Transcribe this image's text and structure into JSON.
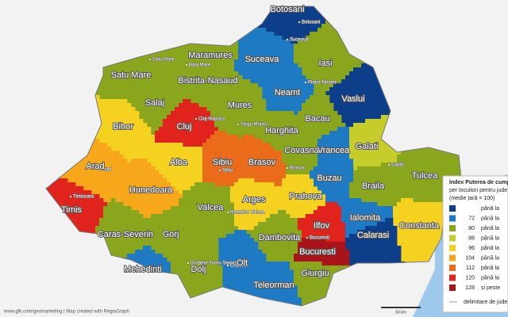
{
  "map": {
    "counties": [
      {
        "name": "Botosani",
        "color": "#0d3e8a"
      },
      {
        "name": "Maramures",
        "color": "#8aa61c"
      },
      {
        "name": "Satu Mare",
        "color": "#8aa61c"
      },
      {
        "name": "Suceava",
        "color": "#1f7ac4"
      },
      {
        "name": "Iasi",
        "color": "#8aa61c"
      },
      {
        "name": "Neamt",
        "color": "#1f7ac4"
      },
      {
        "name": "Vaslui",
        "color": "#0d3e8a"
      },
      {
        "name": "Bistrita-Nasaud",
        "color": "#8aa61c"
      },
      {
        "name": "Salaj",
        "color": "#8aa61c"
      },
      {
        "name": "Bihor",
        "color": "#f4d21f"
      },
      {
        "name": "Cluj",
        "color": "#e0231c"
      },
      {
        "name": "Mures",
        "color": "#8aa61c"
      },
      {
        "name": "Harghita",
        "color": "#8aa61c"
      },
      {
        "name": "Bacau",
        "color": "#8aa61c"
      },
      {
        "name": "Arad",
        "color": "#f6a81a"
      },
      {
        "name": "Alba",
        "color": "#f4d21f"
      },
      {
        "name": "Sibiu",
        "color": "#ea6b1a"
      },
      {
        "name": "Brasov",
        "color": "#ea6b1a"
      },
      {
        "name": "Covasna",
        "color": "#8aa61c"
      },
      {
        "name": "Vrancea",
        "color": "#1f7ac4"
      },
      {
        "name": "Galati",
        "color": "#c6cc2a"
      },
      {
        "name": "Timis",
        "color": "#e0231c"
      },
      {
        "name": "Hunedoara",
        "color": "#f6a81a"
      },
      {
        "name": "Caras-Severin",
        "color": "#8aa61c"
      },
      {
        "name": "Valcea",
        "color": "#8aa61c"
      },
      {
        "name": "Arges",
        "color": "#f4d21f"
      },
      {
        "name": "Prahova",
        "color": "#f4d21f"
      },
      {
        "name": "Buzau",
        "color": "#1f7ac4"
      },
      {
        "name": "Braila",
        "color": "#8aa61c"
      },
      {
        "name": "Tulcea",
        "color": "#8aa61c"
      },
      {
        "name": "Gorj",
        "color": "#8aa61c"
      },
      {
        "name": "Dambovita",
        "color": "#8aa61c"
      },
      {
        "name": "Ilfov",
        "color": "#e0231c"
      },
      {
        "name": "Ialomita",
        "color": "#1f7ac4"
      },
      {
        "name": "Constanta",
        "color": "#f4d21f"
      },
      {
        "name": "Calarasi",
        "color": "#0d3e8a"
      },
      {
        "name": "Bucuresti",
        "color": "#a8141a"
      },
      {
        "name": "Mehedinti",
        "color": "#1f7ac4"
      },
      {
        "name": "Olt",
        "color": "#1f7ac4"
      },
      {
        "name": "Dolj",
        "color": "#8aa61c"
      },
      {
        "name": "Teleorman",
        "color": "#1f7ac4"
      },
      {
        "name": "Giurgiu",
        "color": "#8aa61c"
      }
    ],
    "cities": [
      "Botosani",
      "Suceava",
      "Satu Mare",
      "Baia Mare",
      "Piatra-Neamt",
      "Cluj-Napoca",
      "Targu Mures",
      "Sibiu",
      "Brasov",
      "Timisoara",
      "Arad",
      "Ramnicu Valcea",
      "Bucuresti",
      "Drobeta-Turnu Severin",
      "Craiova",
      "Galati"
    ],
    "footer": "www.gfk.com/geomarketing | Map created with RegioGraph",
    "scale_label": "50 km"
  },
  "legend": {
    "title": [
      "Index Puterea de cump",
      "per locuitori pentru jude",
      "(medie țară = 100)"
    ],
    "items": [
      {
        "color": "#0d3e8a",
        "text": "până la"
      },
      {
        "color": "#1f7ac4",
        "value": 72,
        "text": "până la"
      },
      {
        "color": "#8aa61c",
        "value": 80,
        "text": "până la"
      },
      {
        "color": "#c6cc2a",
        "value": 88,
        "text": "până la"
      },
      {
        "color": "#f4d21f",
        "value": 96,
        "text": "până la"
      },
      {
        "color": "#f6a81a",
        "value": 104,
        "text": "până la"
      },
      {
        "color": "#ea6b1a",
        "value": 112,
        "text": "până la"
      },
      {
        "color": "#e0231c",
        "value": 120,
        "text": "până la"
      },
      {
        "color": "#a8141a",
        "value": 128,
        "text": "și peste"
      }
    ],
    "boundary": "delimitare de jude"
  }
}
